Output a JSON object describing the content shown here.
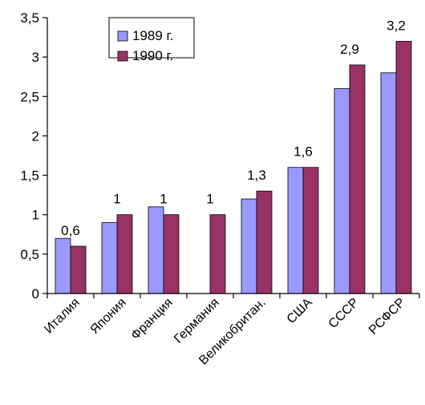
{
  "chart_data": {
    "type": "bar",
    "categories": [
      "Италия",
      "Япония",
      "Франция",
      "Германия",
      "Великобритан.",
      "США",
      "СССР",
      "РСФСР"
    ],
    "series": [
      {
        "name": "1989 г.",
        "color": "#9999FF",
        "values": [
          0.7,
          0.9,
          1.1,
          null,
          1.2,
          1.6,
          2.6,
          2.8
        ]
      },
      {
        "name": "1990 г.",
        "color": "#993366",
        "values": [
          0.6,
          1.0,
          1.0,
          1.0,
          1.3,
          1.6,
          2.9,
          3.2
        ]
      }
    ],
    "data_labels": [
      "0,6",
      "1",
      "1",
      "1",
      "1,3",
      "1,6",
      "2,9",
      "3,2"
    ],
    "y_ticks": [
      "0",
      "0,5",
      "1",
      "1,5",
      "2",
      "2,5",
      "3",
      "3,5"
    ],
    "ylim": [
      0,
      3.5
    ],
    "grid": false,
    "legend_position": "top-left"
  }
}
